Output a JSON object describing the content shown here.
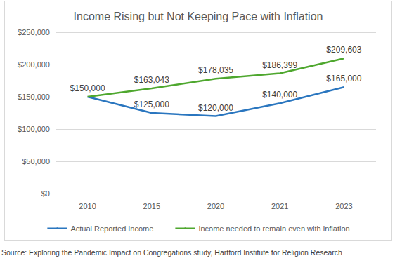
{
  "chart_data": {
    "type": "line",
    "title": "Income Rising but Not Keeping Pace with Inflation",
    "source": "Source: Exploring the Pandemic Impact on Congregations study, Hartford Institute for Religion Research",
    "categories": [
      "2010",
      "2015",
      "2020",
      "2021",
      "2023"
    ],
    "series": [
      {
        "name": "Actual Reported Income",
        "color": "#2a76bf",
        "values": [
          150000,
          125000,
          120000,
          140000,
          165000
        ],
        "value_labels": [
          "$150,000",
          "$125,000",
          "$120,000",
          "$140,000",
          "$165,000"
        ]
      },
      {
        "name": "Income needed to remain even with inflation",
        "color": "#4ea72e",
        "values": [
          150000,
          163043,
          178035,
          186399,
          209603
        ],
        "value_labels": [
          null,
          "$163,043",
          "$178,035",
          "$186,399",
          "$209,603"
        ]
      }
    ],
    "ylim": [
      0,
      250000
    ],
    "yticks": [
      {
        "value": 0,
        "label": "$0"
      },
      {
        "value": 50000,
        "label": "$50,000"
      },
      {
        "value": 100000,
        "label": "$100,000"
      },
      {
        "value": 150000,
        "label": "$150,000"
      },
      {
        "value": 200000,
        "label": "$200,000"
      },
      {
        "value": 250000,
        "label": "$250,000"
      }
    ],
    "grid": true,
    "legend": "bottom",
    "data_labels": true
  }
}
